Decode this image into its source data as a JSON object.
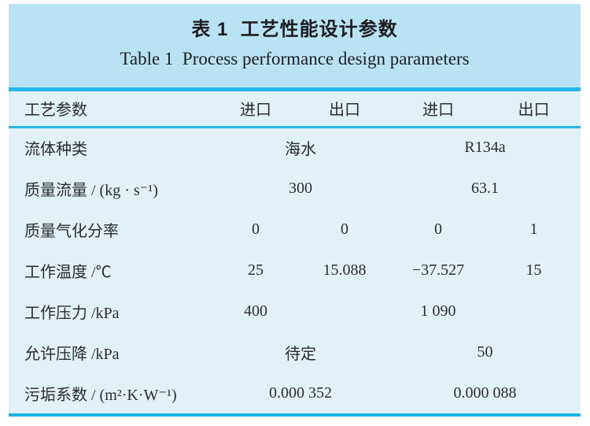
{
  "title": {
    "zh": "表 1  工艺性能设计参数",
    "en": "Table 1  Process performance design parameters"
  },
  "colors": {
    "title_background": "#b9e3f5",
    "table_background": "#e1f1fa",
    "rule_cyan": "#25b7e8",
    "text": "#2c2c31"
  },
  "table": {
    "header": {
      "parameter": "工艺参数",
      "col1": "进口",
      "col2": "出口",
      "col3": "进口",
      "col4": "出口"
    },
    "rows": [
      {
        "label": "流体种类",
        "cells": [
          "海水",
          "R134a"
        ]
      },
      {
        "label": "质量流量 / (kg · s⁻¹)",
        "cells": [
          "300",
          "63.1"
        ]
      },
      {
        "label": "质量气化分率",
        "cells": [
          "0",
          "0",
          "0",
          "1"
        ]
      },
      {
        "label": "工作温度 /℃",
        "cells": [
          "25",
          "15.088",
          "−37.527",
          "15"
        ]
      },
      {
        "label": "工作压力 /kPa",
        "cells": [
          "400",
          "",
          "1 090",
          ""
        ]
      },
      {
        "label": "允许压降 /kPa",
        "cells": [
          "待定",
          "50"
        ]
      },
      {
        "label": "污垢系数 / (m²·K·W⁻¹)",
        "cells": [
          "0.000 352",
          "0.000 088"
        ]
      }
    ]
  }
}
